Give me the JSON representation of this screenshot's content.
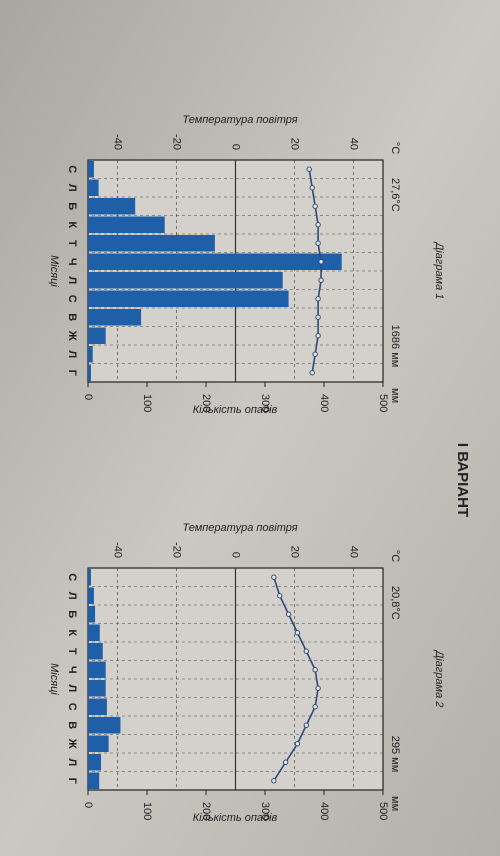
{
  "header": "І ВАРІАНТ",
  "chart_data": [
    {
      "type": "climate",
      "title": "Діаграма 1",
      "temperature_label": "27,6°C",
      "precipitation_label": "1686 мм",
      "y_unit": "°C",
      "y2_unit": "мм",
      "y_title": "Температура повітря",
      "y2_title": "Кількість опадів",
      "x_title": "Місяці",
      "categories": [
        "С",
        "Л",
        "Б",
        "К",
        "Т",
        "Ч",
        "Л",
        "С",
        "В",
        "Ж",
        "Л",
        "Г"
      ],
      "series": [
        {
          "type": "bar",
          "axis": "y2",
          "color": "#1f5fa8",
          "values": [
            10,
            18,
            80,
            130,
            215,
            430,
            330,
            340,
            90,
            30,
            8,
            5
          ]
        },
        {
          "type": "line",
          "color": "#2e4a78",
          "values": [
            25,
            26,
            27,
            28,
            28,
            29,
            29,
            28,
            28,
            28,
            27,
            26
          ]
        }
      ],
      "ylim": [
        -50,
        50
      ],
      "yticks": [
        -40,
        -20,
        0,
        20,
        40
      ],
      "y2lim": [
        0,
        500
      ],
      "y2ticks": [
        0,
        100,
        200,
        300,
        400,
        500
      ],
      "grid": true
    },
    {
      "type": "climate",
      "title": "Діаграма 2",
      "temperature_label": "20,8°C",
      "precipitation_label": "295 мм",
      "y_unit": "°C",
      "y2_unit": "мм",
      "y_title": "Температура повітря",
      "y2_title": "Кількість опадів",
      "x_title": "Місяці",
      "categories": [
        "С",
        "Л",
        "Б",
        "К",
        "Т",
        "Ч",
        "Л",
        "С",
        "В",
        "Ж",
        "Л",
        "Г"
      ],
      "series": [
        {
          "type": "bar",
          "axis": "y2",
          "color": "#1f5fa8",
          "values": [
            5,
            10,
            12,
            20,
            25,
            30,
            30,
            32,
            55,
            35,
            22,
            19
          ]
        },
        {
          "type": "line",
          "color": "#2e4a78",
          "values": [
            13,
            15,
            18,
            21,
            24,
            27,
            28,
            27,
            24,
            21,
            17,
            13
          ]
        }
      ],
      "ylim": [
        -50,
        50
      ],
      "yticks": [
        -40,
        -20,
        0,
        20,
        40
      ],
      "y2lim": [
        0,
        500
      ],
      "y2ticks": [
        0,
        100,
        200,
        300,
        400,
        500
      ],
      "grid": true
    }
  ]
}
